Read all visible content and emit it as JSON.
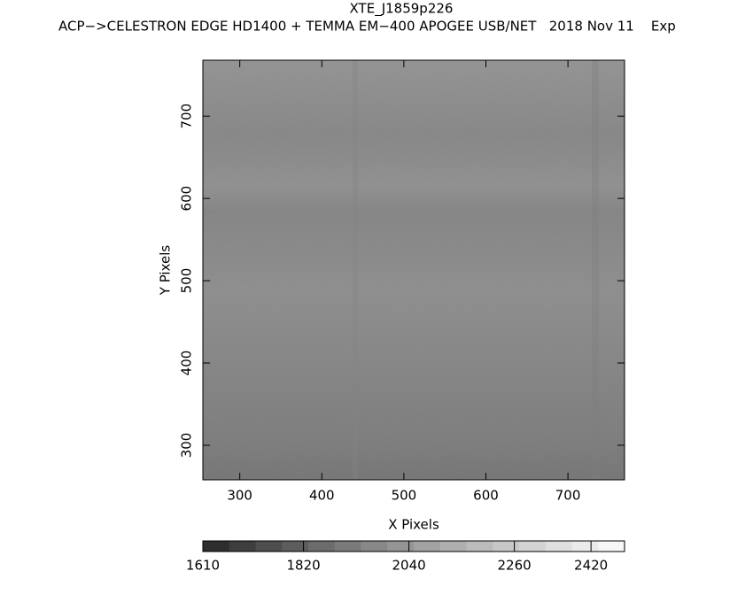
{
  "chart_data": {
    "type": "image",
    "title": "XTE_J1859p226",
    "subtitle": "ACP−>CELESTRON EDGE HD1400 + TEMMA EM−400 APOGEE USB/NET   2018 Nov 11    Exp",
    "x_label": "X Pixels",
    "y_label": "Y Pixels",
    "xlim": [
      255,
      769
    ],
    "xticks": [
      300,
      400,
      500,
      600,
      700
    ],
    "ylim": [
      258,
      768
    ],
    "yticks": [
      300,
      400,
      500,
      600,
      700
    ],
    "colorbar": {
      "lim": [
        1610,
        2490
      ],
      "ticks": [
        1610,
        1820,
        2040,
        2260,
        2420
      ],
      "colors": [
        "#2e2e2e",
        "#3e3e3e",
        "#4e4e4e",
        "#5d5d5d",
        "#6c6c6c",
        "#7a7a7a",
        "#888888",
        "#959595",
        "#a2a2a2",
        "#afafaf",
        "#bbbbbb",
        "#c7c7c7",
        "#d3d3d3",
        "#dfdfdf",
        "#ebebeb",
        "#f7f7f7"
      ]
    }
  }
}
